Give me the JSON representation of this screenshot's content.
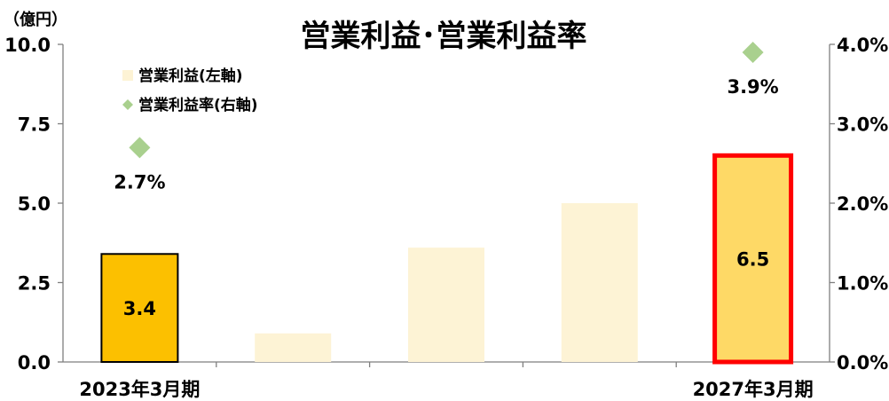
{
  "chart_data": {
    "type": "bar",
    "title": "営業利益･営業利益率",
    "unit_label": "（億円）",
    "categories": [
      "2023年3月期",
      "",
      "",
      "",
      "2027年3月期"
    ],
    "series": [
      {
        "name": "営業利益(左軸)",
        "kind": "bar",
        "axis": "left",
        "values": [
          3.4,
          0.9,
          3.6,
          5.0,
          6.5
        ],
        "value_labels": [
          "3.4",
          "",
          "",
          "",
          "6.5"
        ],
        "colors": [
          "#fcc000",
          "#fdf3d5",
          "#fdf3d5",
          "#fdf3d5",
          "#fed966"
        ],
        "outline_colors": [
          "#000000",
          "",
          "",
          "",
          "#ff0000"
        ],
        "legend_color": "#fdf3d5"
      },
      {
        "name": "営業利益率(右軸)",
        "kind": "marker",
        "marker": "diamond",
        "axis": "right",
        "values": [
          2.7,
          null,
          null,
          null,
          3.9
        ],
        "value_labels": [
          "2.7%",
          "",
          "",
          "",
          "3.9%"
        ],
        "color": "#a9d08e"
      }
    ],
    "y_left": {
      "ylim": [
        0,
        10
      ],
      "ticks": [
        "0.0",
        "2.5",
        "5.0",
        "7.5",
        "10.0"
      ]
    },
    "y_right": {
      "ylim": [
        0,
        4
      ],
      "ticks": [
        "0.0%",
        "1.0%",
        "2.0%",
        "3.0%",
        "4.0%"
      ]
    },
    "grid": false,
    "legend_position": "top-left"
  }
}
